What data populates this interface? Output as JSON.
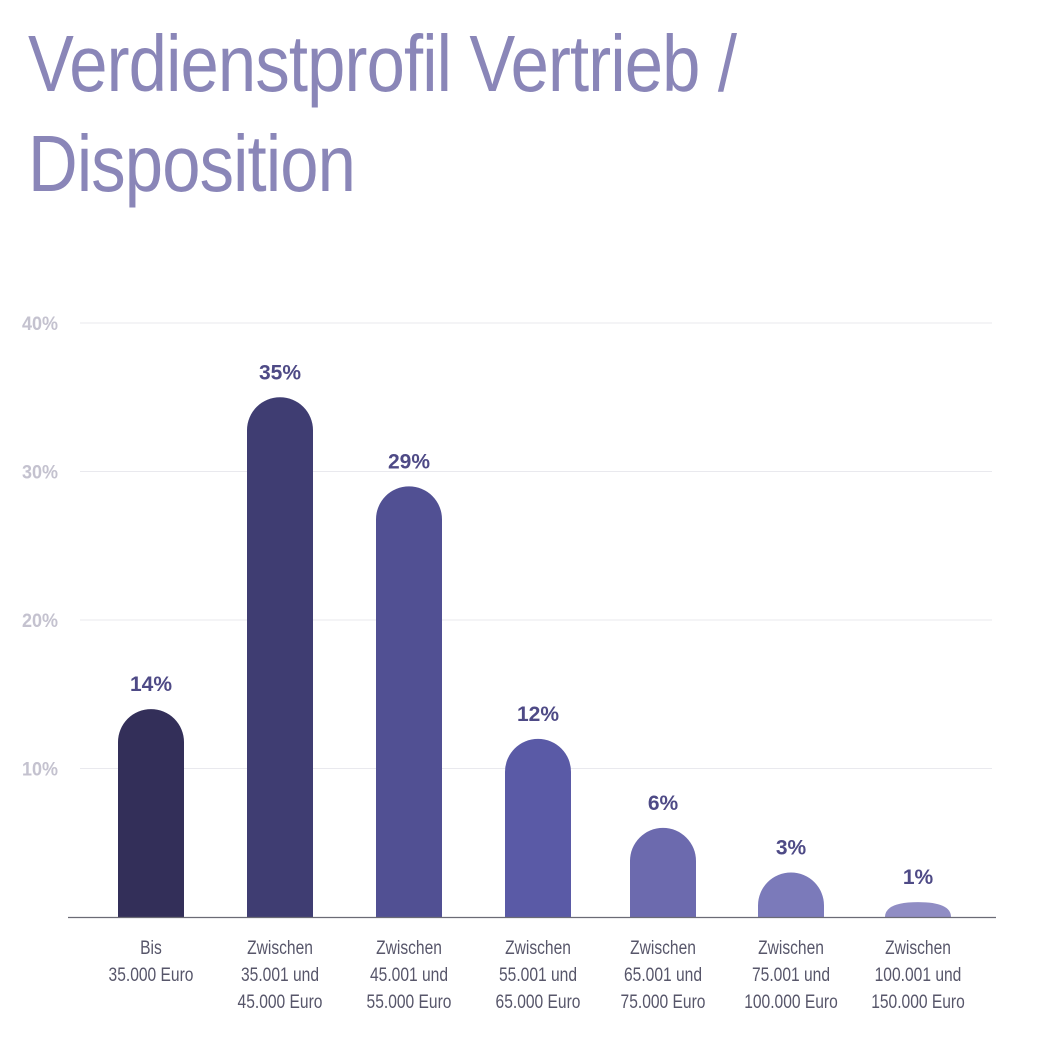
{
  "title": "Verdienstprofil Vertrieb / Disposition",
  "colors": {
    "title": "#8a86b8",
    "tick_label": "#c4c2cf",
    "value_label": "#4e4a86",
    "category_label": "#57566a",
    "grid": "#e9e9ee",
    "axis": "#6b6b75",
    "bars": [
      "#332f59",
      "#3f3d72",
      "#515093",
      "#5a5aa6",
      "#6c6aae",
      "#7b7aba",
      "#908dc4"
    ]
  },
  "chart_data": {
    "type": "bar",
    "categories": [
      [
        "Bis",
        "35.000 Euro"
      ],
      [
        "Zwischen",
        "35.001 und",
        "45.000 Euro"
      ],
      [
        "Zwischen",
        "45.001 und",
        "55.000 Euro"
      ],
      [
        "Zwischen",
        "55.001 und",
        "65.000 Euro"
      ],
      [
        "Zwischen",
        "65.001 und",
        "75.000 Euro"
      ],
      [
        "Zwischen",
        "75.001 und",
        "100.000 Euro"
      ],
      [
        "Zwischen",
        "100.001 und",
        "150.000 Euro"
      ]
    ],
    "values": [
      14,
      35,
      29,
      12,
      6,
      3,
      1
    ],
    "value_labels": [
      "14%",
      "35%",
      "29%",
      "12%",
      "6%",
      "3%",
      "1%"
    ],
    "yticks": [
      10,
      20,
      30,
      40
    ],
    "ytick_labels": [
      "10%",
      "20%",
      "30%",
      "40%"
    ],
    "ylim": [
      0,
      40
    ],
    "grid": true
  }
}
